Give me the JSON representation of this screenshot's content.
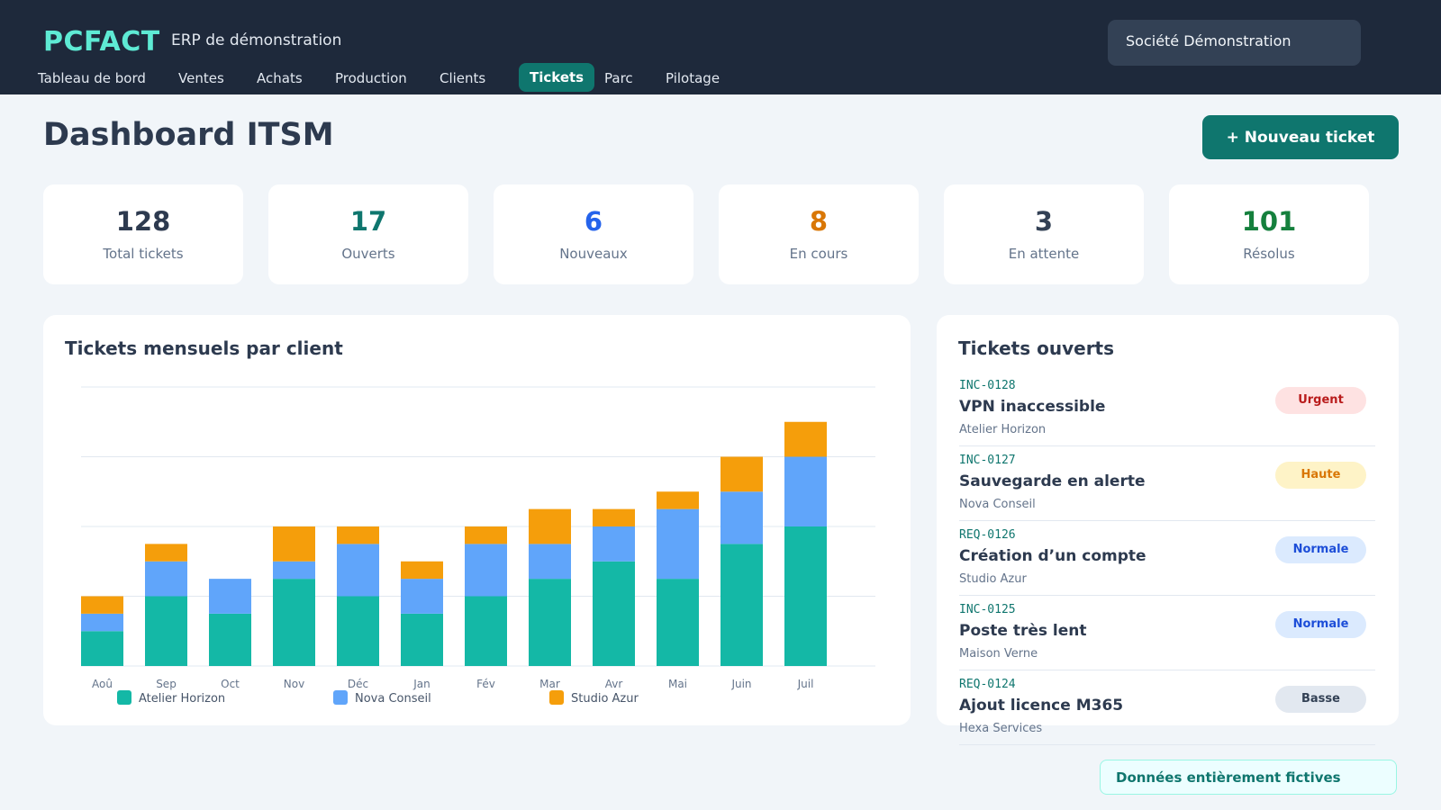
{
  "header": {
    "logo": "PCFACT",
    "subtitle": "ERP de démonstration",
    "company": "Société Démonstration"
  },
  "nav": [
    {
      "label": "Tableau de bord",
      "active": false
    },
    {
      "label": "Ventes",
      "active": false
    },
    {
      "label": "Achats",
      "active": false
    },
    {
      "label": "Production",
      "active": false
    },
    {
      "label": "Clients",
      "active": false
    },
    {
      "label": "Tickets",
      "active": true
    },
    {
      "label": "Parc",
      "active": false
    },
    {
      "label": "Pilotage",
      "active": false
    }
  ],
  "page": {
    "title": "Dashboard ITSM",
    "new_ticket_label": "+ Nouveau ticket"
  },
  "stats": [
    {
      "value": "128",
      "label": "Total tickets",
      "color": "#2d3a4f"
    },
    {
      "value": "17",
      "label": "Ouverts",
      "color": "#0f766e"
    },
    {
      "value": "6",
      "label": "Nouveaux",
      "color": "#2563eb"
    },
    {
      "value": "8",
      "label": "En cours",
      "color": "#d97706"
    },
    {
      "value": "3",
      "label": "En attente",
      "color": "#334155"
    },
    {
      "value": "101",
      "label": "Résolus",
      "color": "#15803d"
    }
  ],
  "chart_panel": {
    "title": "Tickets mensuels par client"
  },
  "chart_data": {
    "type": "bar",
    "stacked": true,
    "categories": [
      "Aoû",
      "Sep",
      "Oct",
      "Nov",
      "Déc",
      "Jan",
      "Fév",
      "Mar",
      "Avr",
      "Mai",
      "Juin",
      "Juil"
    ],
    "series": [
      {
        "name": "Atelier Horizon",
        "color": "#14b8a6",
        "values": [
          2,
          4,
          3,
          5,
          4,
          3,
          4,
          5,
          6,
          5,
          7,
          8
        ]
      },
      {
        "name": "Nova Conseil",
        "color": "#60a5fa",
        "values": [
          1,
          2,
          2,
          1,
          3,
          2,
          3,
          2,
          2,
          4,
          3,
          4
        ]
      },
      {
        "name": "Studio Azur",
        "color": "#f59e0b",
        "values": [
          1,
          1,
          0,
          2,
          1,
          1,
          1,
          2,
          1,
          1,
          2,
          2
        ]
      }
    ],
    "ylim": [
      0,
      16
    ],
    "grid": true,
    "legend": "bottom"
  },
  "tickets_panel": {
    "title": "Tickets ouverts",
    "items": [
      {
        "id": "INC-0128",
        "title": "VPN inaccessible",
        "client": "Atelier Horizon",
        "priority": "Urgent",
        "badge_bg": "#fee2e2",
        "badge_fg": "#b91c1c"
      },
      {
        "id": "INC-0127",
        "title": "Sauvegarde en alerte",
        "client": "Nova Conseil",
        "priority": "Haute",
        "badge_bg": "#fef3c7",
        "badge_fg": "#d97706"
      },
      {
        "id": "REQ-0126",
        "title": "Création d’un compte",
        "client": "Studio Azur",
        "priority": "Normale",
        "badge_bg": "#dbeafe",
        "badge_fg": "#1d4ed8"
      },
      {
        "id": "INC-0125",
        "title": "Poste très lent",
        "client": "Maison Verne",
        "priority": "Normale",
        "badge_bg": "#dbeafe",
        "badge_fg": "#1d4ed8"
      },
      {
        "id": "REQ-0124",
        "title": "Ajout licence M365",
        "client": "Hexa Services",
        "priority": "Basse",
        "badge_bg": "#e2e8f0",
        "badge_fg": "#334155"
      }
    ]
  },
  "footer_note": "Données entièrement fictives"
}
